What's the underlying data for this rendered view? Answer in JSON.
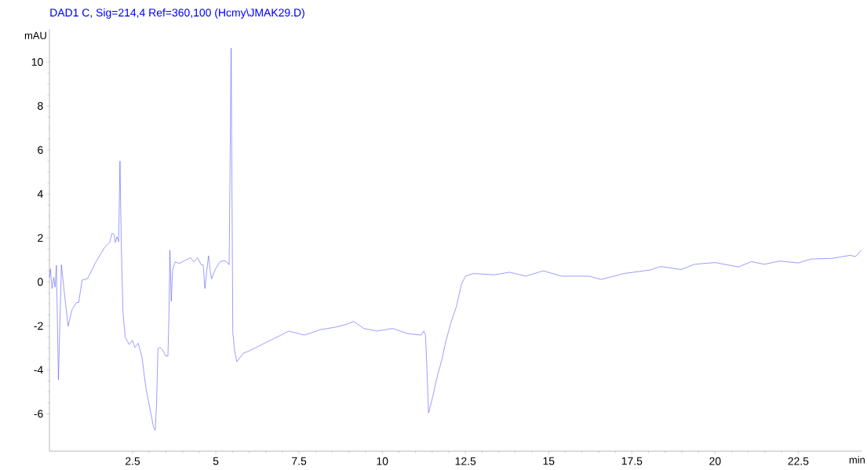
{
  "chart_data": {
    "type": "line",
    "title": "DAD1 C, Sig=214,4 Ref=360,100 (Hcmy\\JMAK29.D)",
    "xlabel": "min",
    "ylabel": "mAU",
    "xlim": [
      0,
      24.4
    ],
    "ylim": [
      -7.7,
      11.5
    ],
    "xticks": [
      2.5,
      5,
      7.5,
      10,
      12.5,
      15,
      17.5,
      20,
      22.5
    ],
    "yticks": [
      -6,
      -4,
      -2,
      0,
      2,
      4,
      6,
      8,
      10
    ],
    "grid": false,
    "marker": "none",
    "line_style": "solid",
    "series": [
      {
        "color": "#5a5aff",
        "x": [
          0.0,
          0.03,
          0.08,
          0.13,
          0.17,
          0.21,
          0.27,
          0.36,
          0.43,
          0.56,
          0.68,
          0.81,
          0.88,
          0.98,
          1.14,
          1.4,
          1.65,
          1.81,
          1.88,
          1.94,
          1.98,
          2.03,
          2.08,
          2.12,
          2.16,
          2.21,
          2.28,
          2.4,
          2.49,
          2.57,
          2.67,
          2.78,
          2.9,
          3.03,
          3.13,
          3.18,
          3.22,
          3.26,
          3.32,
          3.41,
          3.49,
          3.56,
          3.59,
          3.62,
          3.66,
          3.7,
          3.78,
          3.91,
          4.07,
          4.24,
          4.34,
          4.45,
          4.56,
          4.62,
          4.67,
          4.73,
          4.78,
          4.83,
          4.87,
          4.99,
          5.12,
          5.24,
          5.33,
          5.4,
          5.46,
          5.51,
          5.56,
          5.63,
          5.83,
          6.02,
          6.41,
          6.88,
          7.19,
          7.66,
          8.13,
          8.59,
          8.91,
          9.14,
          9.45,
          9.84,
          10.31,
          10.78,
          11.17,
          11.25,
          11.3,
          11.34,
          11.39,
          11.52,
          11.64,
          11.8,
          11.91,
          12.07,
          12.23,
          12.38,
          12.5,
          12.74,
          13.36,
          13.83,
          14.3,
          14.84,
          15.39,
          16.21,
          16.58,
          17.26,
          18.05,
          18.36,
          18.98,
          19.38,
          20.0,
          20.7,
          21.09,
          21.48,
          21.95,
          22.5,
          22.89,
          23.52,
          24.06,
          24.22,
          24.4
        ],
        "values": [
          0.2,
          0.59,
          -0.3,
          0.2,
          -0.24,
          0.75,
          -4.45,
          0.78,
          -0.24,
          -2.02,
          -1.26,
          -0.94,
          -0.94,
          0.08,
          0.14,
          0.91,
          1.55,
          1.8,
          2.21,
          2.16,
          1.8,
          2.06,
          1.83,
          5.5,
          1.55,
          -1.39,
          -2.54,
          -2.85,
          -2.66,
          -2.98,
          -2.79,
          -3.43,
          -4.83,
          -5.85,
          -6.62,
          -6.75,
          -5.47,
          -3.05,
          -2.98,
          -3.11,
          -3.37,
          -3.37,
          -1.64,
          1.44,
          -0.88,
          0.53,
          0.91,
          0.84,
          0.97,
          1.1,
          0.91,
          1.1,
          0.78,
          0.78,
          -0.3,
          0.53,
          1.19,
          0.53,
          0.14,
          0.59,
          0.91,
          0.97,
          0.91,
          0.78,
          10.63,
          -2.28,
          -3.11,
          -3.63,
          -3.24,
          -3.13,
          -2.83,
          -2.48,
          -2.24,
          -2.42,
          -2.18,
          -2.06,
          -1.94,
          -1.8,
          -2.12,
          -2.24,
          -2.12,
          -2.36,
          -2.42,
          -2.24,
          -2.42,
          -3.85,
          -5.96,
          -5.21,
          -4.38,
          -3.49,
          -2.71,
          -1.82,
          -1.11,
          -0.1,
          0.26,
          0.38,
          0.32,
          0.44,
          0.26,
          0.5,
          0.26,
          0.26,
          0.11,
          0.38,
          0.54,
          0.7,
          0.56,
          0.8,
          0.88,
          0.68,
          0.92,
          0.8,
          0.95,
          0.86,
          1.04,
          1.07,
          1.21,
          1.15,
          1.45
        ]
      }
    ]
  }
}
